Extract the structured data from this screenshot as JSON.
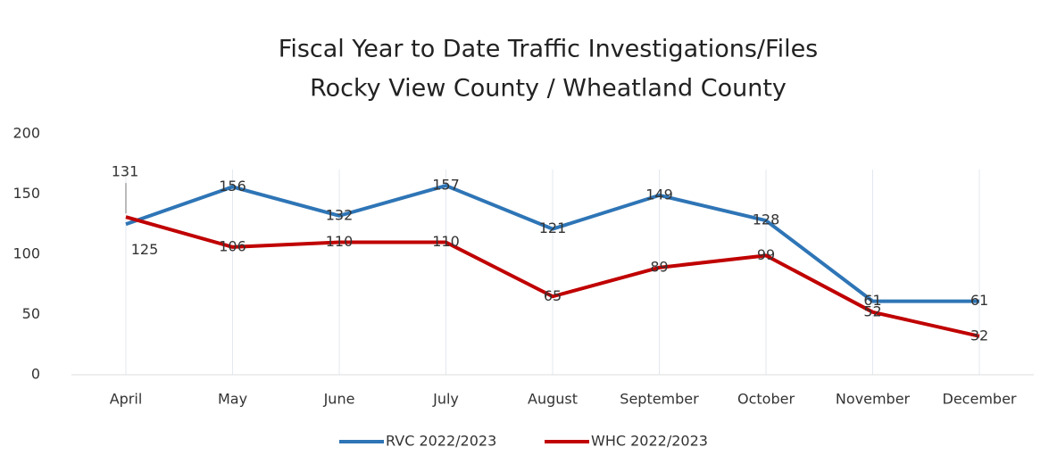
{
  "chart_data": {
    "type": "line",
    "title": [
      "Fiscal Year to Date Traffic Investigations/Files",
      "Rocky View County / Wheatland County"
    ],
    "categories": [
      "April",
      "May",
      "June",
      "July",
      "August",
      "September",
      "October",
      "November",
      "December"
    ],
    "series": [
      {
        "name": "RVC 2022/2023",
        "color": "#2e75b6",
        "values": [
          125,
          156,
          132,
          157,
          121,
          149,
          128,
          61,
          61
        ]
      },
      {
        "name": "WHC 2022/2023",
        "color": "#c00000",
        "values": [
          131,
          106,
          110,
          110,
          65,
          89,
          99,
          52,
          32
        ]
      }
    ],
    "ylim": [
      0,
      200
    ],
    "yticks": [
      0,
      50,
      100,
      150,
      200
    ],
    "grid": true,
    "legend": "bottom"
  }
}
